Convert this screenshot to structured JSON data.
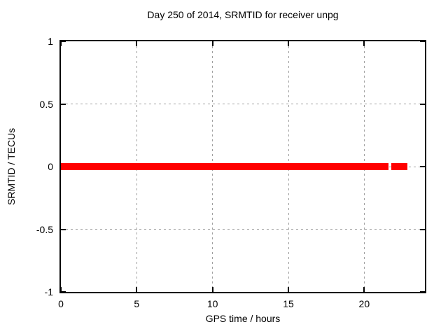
{
  "chart_data": {
    "type": "line",
    "title": "Day 250 of 2014, SRMTID for receiver unpg",
    "xlabel": "GPS time / hours",
    "ylabel": "SRMTID / TECUs",
    "xlim": [
      0,
      24
    ],
    "ylim": [
      -1,
      1
    ],
    "xticks": [
      0,
      5,
      10,
      15,
      20
    ],
    "xtick_labels": [
      "0",
      "5",
      "10",
      "15",
      "20"
    ],
    "yticks": [
      -1,
      -0.5,
      0,
      0.5,
      1
    ],
    "ytick_labels": [
      "-1",
      "-0.5",
      "0",
      "0.5",
      "1"
    ],
    "grid": true,
    "grid_style": "dashed",
    "legend": "none",
    "series": [
      {
        "name": "SRMTID",
        "color": "#ff0000",
        "value": 0,
        "segments_hours": [
          [
            0,
            21.62
          ],
          [
            21.78,
            22.85
          ]
        ]
      }
    ]
  },
  "colors": {
    "line": "#ff0000",
    "grid": "#a0a0a0",
    "border": "#000000",
    "background": "#ffffff",
    "text": "#000000"
  }
}
